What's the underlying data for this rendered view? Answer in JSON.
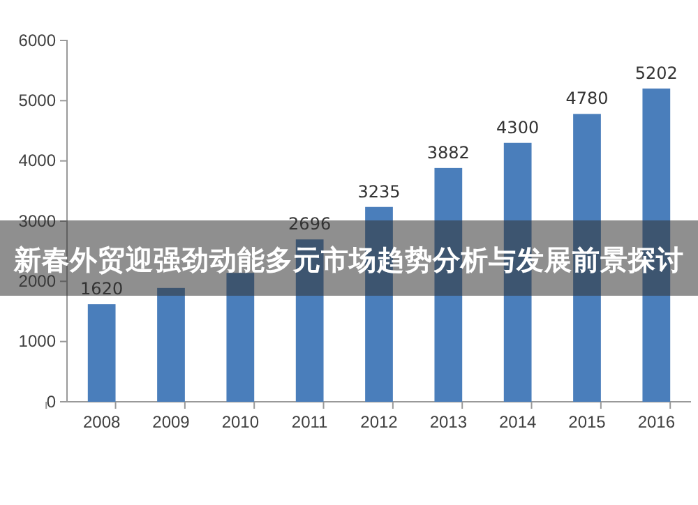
{
  "chart_data": {
    "type": "bar",
    "title": "新春外贸迎强劲动能多元市场趋势分析与发展前景探讨",
    "categories": [
      "2008",
      "2009",
      "2010",
      "2011",
      "2012",
      "2013",
      "2014",
      "2015",
      "2016"
    ],
    "values": [
      1620,
      1890,
      2140,
      2696,
      3235,
      3882,
      4300,
      4780,
      5202
    ],
    "value_labels": [
      "1620",
      null,
      null,
      "2696",
      "3235",
      "3882",
      "4300",
      "4780",
      "5202"
    ],
    "color": "#4a7ebb",
    "ylim": [
      0,
      6000
    ],
    "yticks": [
      0,
      1000,
      2000,
      3000,
      4000,
      5000,
      6000
    ],
    "grid": false
  }
}
